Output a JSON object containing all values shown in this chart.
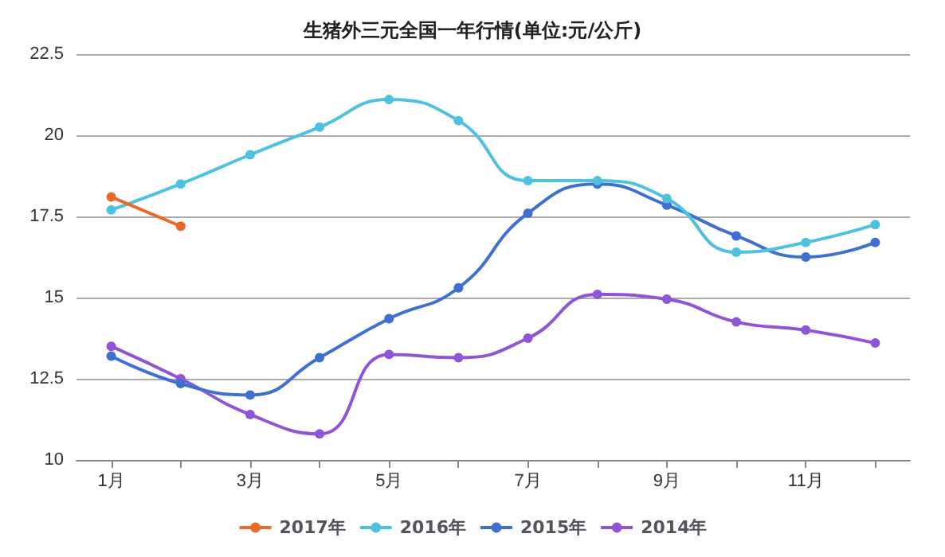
{
  "chart_data": {
    "type": "line",
    "title": "生猪外三元全国一年行情(单位:元/公斤)",
    "categories": [
      "1月",
      null,
      "3月",
      null,
      "5月",
      null,
      "7月",
      null,
      "9月",
      null,
      "11月",
      null
    ],
    "series": [
      {
        "name": "2017年",
        "color": "#e8692a",
        "values": [
          18.1,
          17.2,
          null,
          null,
          null,
          null,
          null,
          null,
          null,
          null,
          null,
          null
        ]
      },
      {
        "name": "2016年",
        "color": "#4fc1e0",
        "values": [
          17.7,
          18.5,
          19.4,
          20.25,
          21.1,
          20.45,
          18.6,
          18.6,
          18.05,
          16.4,
          16.7,
          17.25
        ]
      },
      {
        "name": "2015年",
        "color": "#3f6fcf",
        "values": [
          13.2,
          12.35,
          12.0,
          13.15,
          14.35,
          15.3,
          17.6,
          18.5,
          17.85,
          16.9,
          16.25,
          16.7
        ]
      },
      {
        "name": "2014年",
        "color": "#9055d6",
        "values": [
          13.5,
          12.5,
          11.4,
          10.8,
          13.25,
          13.15,
          13.75,
          15.1,
          14.95,
          14.25,
          14.0,
          13.6
        ]
      }
    ],
    "ylim": [
      10,
      22.5
    ],
    "yticks": [
      10,
      12.5,
      15,
      17.5,
      20,
      22.5
    ],
    "grid": "y",
    "legend": "bottom",
    "marker": "circle",
    "line_style": "solid"
  }
}
